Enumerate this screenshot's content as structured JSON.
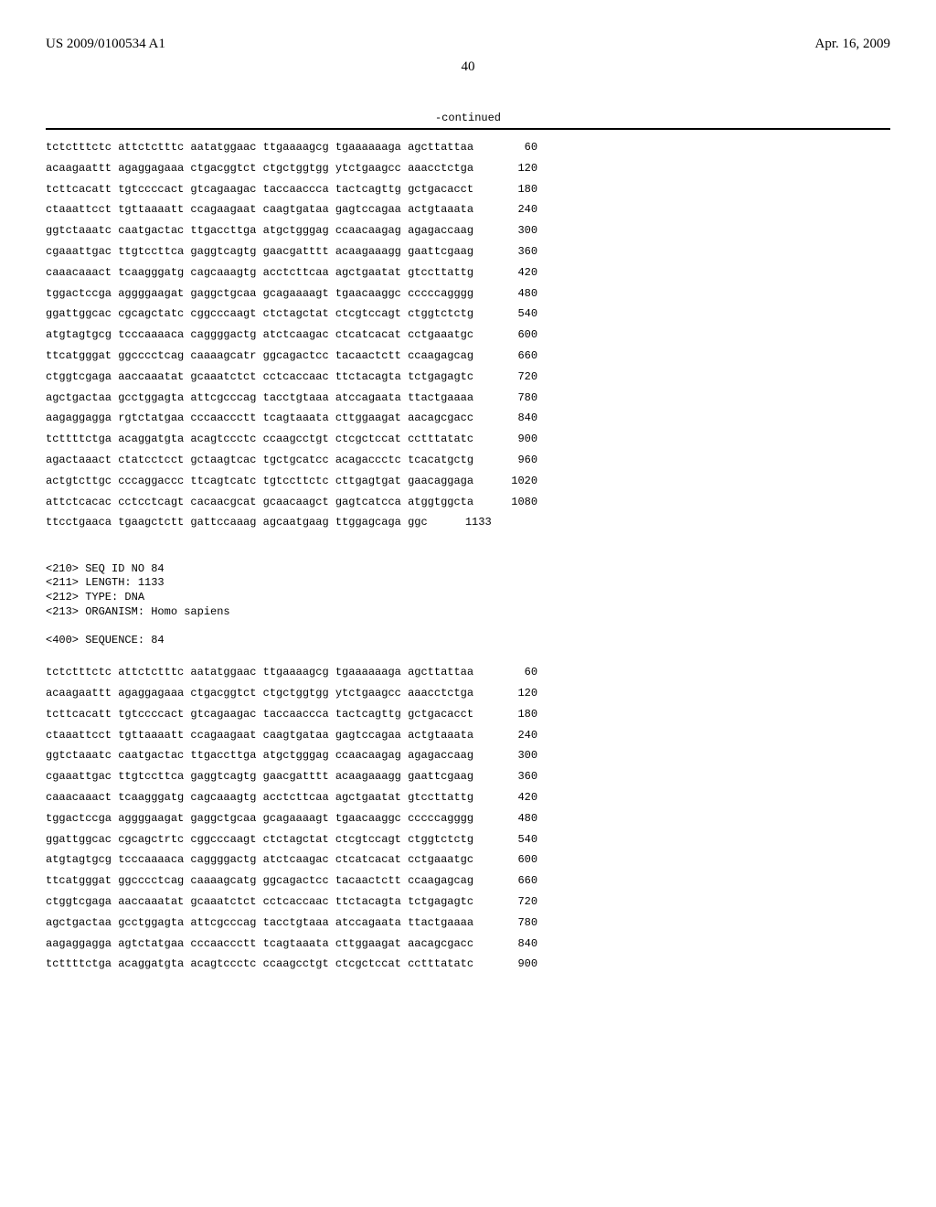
{
  "header": {
    "pub_number": "US 2009/0100534 A1",
    "pub_date": "Apr. 16, 2009"
  },
  "page_number": "40",
  "continued_label": "-continued",
  "sequence_a": {
    "rows": [
      {
        "seq": "tctctttctc attctctttc aatatggaac ttgaaaagcg tgaaaaaaga agcttattaa",
        "n": "60"
      },
      {
        "seq": "acaagaattt agaggagaaa ctgacggtct ctgctggtgg ytctgaagcc aaacctctga",
        "n": "120"
      },
      {
        "seq": "tcttcacatt tgtccccact gtcagaagac taccaaccca tactcagttg gctgacacct",
        "n": "180"
      },
      {
        "seq": "ctaaattcct tgttaaaatt ccagaagaat caagtgataa gagtccagaa actgtaaata",
        "n": "240"
      },
      {
        "seq": "ggtctaaatc caatgactac ttgaccttga atgctgggag ccaacaagag agagaccaag",
        "n": "300"
      },
      {
        "seq": "cgaaattgac ttgtccttca gaggtcagtg gaacgatttt acaagaaagg gaattcgaag",
        "n": "360"
      },
      {
        "seq": "caaacaaact tcaagggatg cagcaaagtg acctcttcaa agctgaatat gtccttattg",
        "n": "420"
      },
      {
        "seq": "tggactccga aggggaagat gaggctgcaa gcagaaaagt tgaacaaggc cccccagggg",
        "n": "480"
      },
      {
        "seq": "ggattggcac cgcagctatc cggcccaagt ctctagctat ctcgtccagt ctggtctctg",
        "n": "540"
      },
      {
        "seq": "atgtagtgcg tcccaaaaca caggggactg atctcaagac ctcatcacat cctgaaatgc",
        "n": "600"
      },
      {
        "seq": "ttcatgggat ggcccctcag caaaagcatr ggcagactcc tacaactctt ccaagagcag",
        "n": "660"
      },
      {
        "seq": "ctggtcgaga aaccaaatat gcaaatctct cctcaccaac ttctacagta tctgagagtc",
        "n": "720"
      },
      {
        "seq": "agctgactaa gcctggagta attcgcccag tacctgtaaa atccagaata ttactgaaaa",
        "n": "780"
      },
      {
        "seq": "aagaggagga rgtctatgaa cccaaccctt tcagtaaata cttggaagat aacagcgacc",
        "n": "840"
      },
      {
        "seq": "tcttttctga acaggatgta acagtccctc ccaagcctgt ctcgctccat cctttatatc",
        "n": "900"
      },
      {
        "seq": "agactaaact ctatcctcct gctaagtcac tgctgcatcc acagaccctc tcacatgctg",
        "n": "960"
      },
      {
        "seq": "actgtcttgc cccaggaccc ttcagtcatc tgtccttctc cttgagtgat gaacaggaga",
        "n": "1020"
      },
      {
        "seq": "attctcacac cctcctcagt cacaacgcat gcaacaagct gagtcatcca atggtggcta",
        "n": "1080"
      },
      {
        "seq": "ttcctgaaca tgaagctctt gattccaaag agcaatgaag ttggagcaga ggc",
        "n": "1133"
      }
    ]
  },
  "meta": {
    "seq_id": "<210> SEQ ID NO 84",
    "length": "<211> LENGTH: 1133",
    "type": "<212> TYPE: DNA",
    "organism": "<213> ORGANISM: Homo sapiens",
    "sequence_label": "<400> SEQUENCE: 84"
  },
  "sequence_b": {
    "rows": [
      {
        "seq": "tctctttctc attctctttc aatatggaac ttgaaaagcg tgaaaaaaga agcttattaa",
        "n": "60"
      },
      {
        "seq": "acaagaattt agaggagaaa ctgacggtct ctgctggtgg ytctgaagcc aaacctctga",
        "n": "120"
      },
      {
        "seq": "tcttcacatt tgtccccact gtcagaagac taccaaccca tactcagttg gctgacacct",
        "n": "180"
      },
      {
        "seq": "ctaaattcct tgttaaaatt ccagaagaat caagtgataa gagtccagaa actgtaaata",
        "n": "240"
      },
      {
        "seq": "ggtctaaatc caatgactac ttgaccttga atgctgggag ccaacaagag agagaccaag",
        "n": "300"
      },
      {
        "seq": "cgaaattgac ttgtccttca gaggtcagtg gaacgatttt acaagaaagg gaattcgaag",
        "n": "360"
      },
      {
        "seq": "caaacaaact tcaagggatg cagcaaagtg acctcttcaa agctgaatat gtccttattg",
        "n": "420"
      },
      {
        "seq": "tggactccga aggggaagat gaggctgcaa gcagaaaagt tgaacaaggc cccccagggg",
        "n": "480"
      },
      {
        "seq": "ggattggcac cgcagctrtc cggcccaagt ctctagctat ctcgtccagt ctggtctctg",
        "n": "540"
      },
      {
        "seq": "atgtagtgcg tcccaaaaca caggggactg atctcaagac ctcatcacat cctgaaatgc",
        "n": "600"
      },
      {
        "seq": "ttcatgggat ggcccctcag caaaagcatg ggcagactcc tacaactctt ccaagagcag",
        "n": "660"
      },
      {
        "seq": "ctggtcgaga aaccaaatat gcaaatctct cctcaccaac ttctacagta tctgagagtc",
        "n": "720"
      },
      {
        "seq": "agctgactaa gcctggagta attcgcccag tacctgtaaa atccagaata ttactgaaaa",
        "n": "780"
      },
      {
        "seq": "aagaggagga agtctatgaa cccaaccctt tcagtaaata cttggaagat aacagcgacc",
        "n": "840"
      },
      {
        "seq": "tcttttctga acaggatgta acagtccctc ccaagcctgt ctcgctccat cctttatatc",
        "n": "900"
      }
    ]
  }
}
